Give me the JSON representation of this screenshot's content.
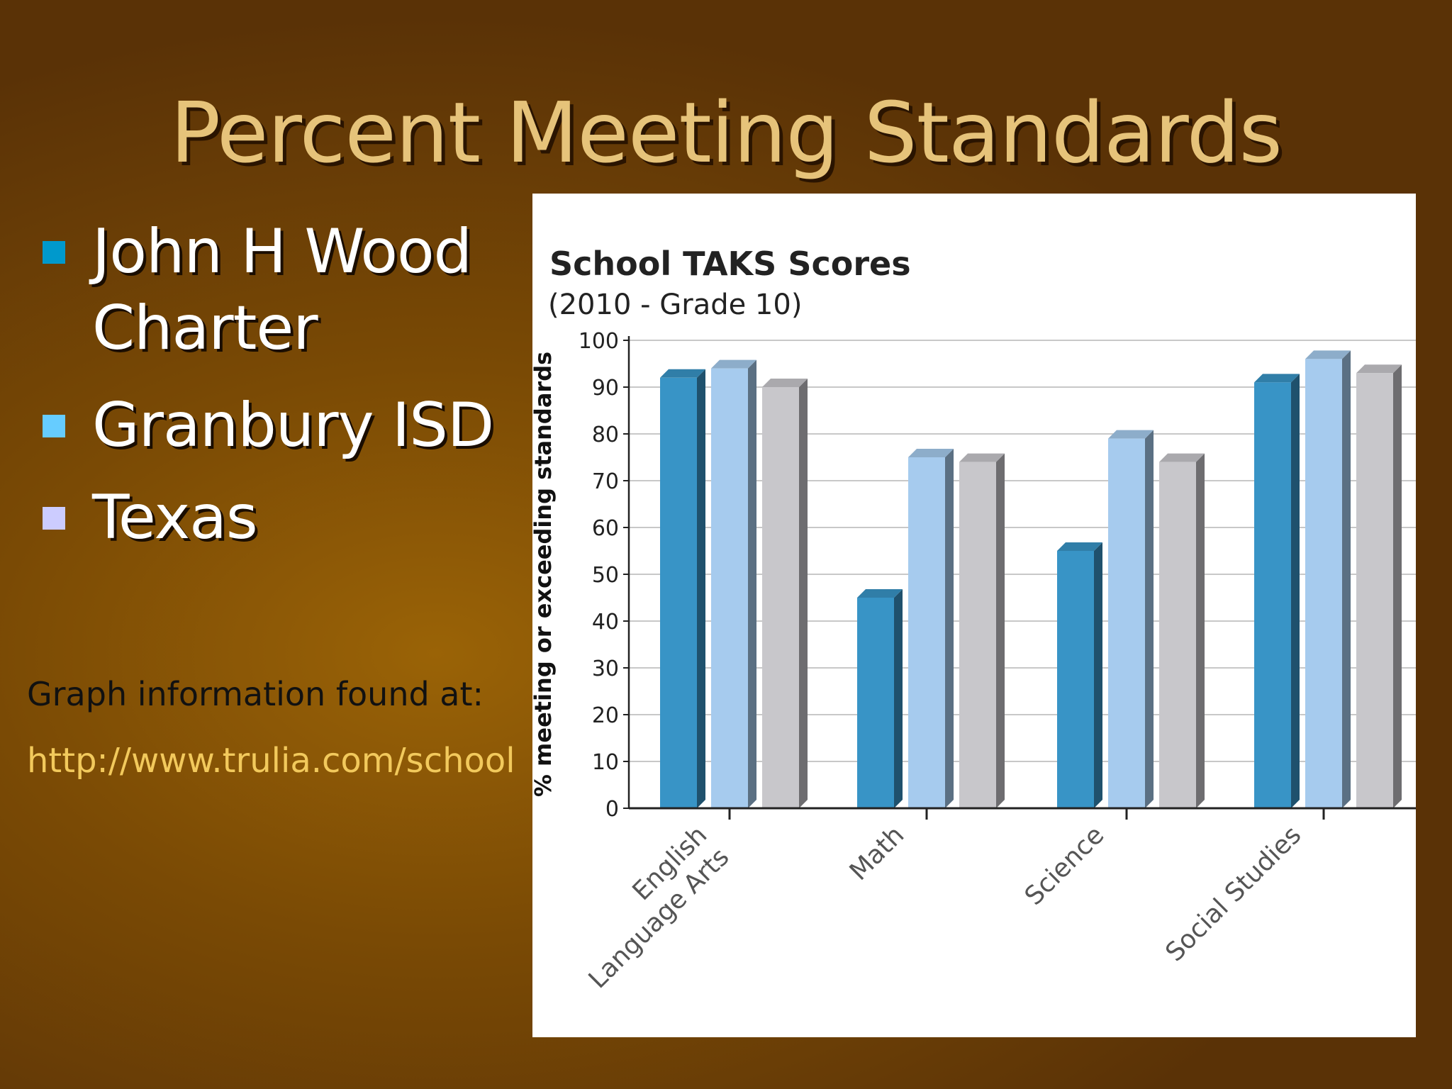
{
  "slide": {
    "title": "Percent Meeting Standards",
    "bullets": [
      {
        "label": "John H Wood",
        "label2": "Charter",
        "color": "#0099cc"
      },
      {
        "label": "Granbury ISD",
        "color": "#66ccff"
      },
      {
        "label": "Texas",
        "color": "#ccccff"
      }
    ],
    "source_label": "Graph information found at:",
    "source_link": "http://www.trulia.com/school"
  },
  "chart_data": {
    "type": "bar",
    "title": "School TAKS Scores",
    "subtitle": "(2010 - Grade 10)",
    "ylabel": "% meeting or exceeding standards",
    "xlabel": "",
    "ylim": [
      0,
      100
    ],
    "yticks": [
      0,
      10,
      20,
      30,
      40,
      50,
      60,
      70,
      80,
      90,
      100
    ],
    "categories": [
      "English Language Arts",
      "Math",
      "Science",
      "Social Studies"
    ],
    "category_label_lines": [
      [
        "English",
        "Language Arts"
      ],
      [
        "Math"
      ],
      [
        "Science"
      ],
      [
        "Social Studies"
      ]
    ],
    "series": [
      {
        "values": [
          92,
          45,
          55,
          91
        ],
        "color": "#3894c6"
      },
      {
        "values": [
          94,
          75,
          79,
          96
        ],
        "color": "#a6cbee"
      },
      {
        "values": [
          90,
          74,
          74,
          93
        ],
        "color": "#c8c7cb"
      }
    ],
    "grid": true,
    "legend": "none"
  }
}
